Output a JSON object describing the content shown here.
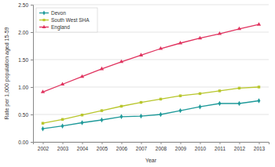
{
  "chart_data": {
    "type": "line",
    "x_label": "Year",
    "y_label": "Rate per 1,000 population aged 15-59",
    "categories": [
      "2002",
      "2003",
      "2004",
      "2005",
      "2006",
      "2007",
      "2008",
      "2009",
      "2010",
      "2011",
      "2012",
      "2013"
    ],
    "series": [
      {
        "name": "Devon",
        "color": "#1f9a9a",
        "marker": "diamond",
        "values": [
          0.24,
          0.29,
          0.35,
          0.4,
          0.46,
          0.47,
          0.5,
          0.57,
          0.64,
          0.7,
          0.7,
          0.75
        ]
      },
      {
        "name": "South West SHA",
        "color": "#b8c62c",
        "marker": "square",
        "values": [
          0.34,
          0.41,
          0.49,
          0.57,
          0.65,
          0.72,
          0.78,
          0.84,
          0.88,
          0.93,
          0.98,
          1.0
        ]
      },
      {
        "name": "England",
        "color": "#e0335f",
        "marker": "triangle",
        "values": [
          0.91,
          1.05,
          1.19,
          1.33,
          1.46,
          1.58,
          1.7,
          1.8,
          1.89,
          1.97,
          2.06,
          2.14
        ]
      }
    ],
    "ylim": [
      0,
      2.5
    ],
    "yticks": [
      {
        "value": 0,
        "label": "0.00"
      },
      {
        "value": 0.5,
        "label": "0.50"
      },
      {
        "value": 1,
        "label": "1.00"
      },
      {
        "value": 1.5,
        "label": "1.50"
      },
      {
        "value": 2,
        "label": "2.00"
      },
      {
        "value": 2.5,
        "label": "2.50"
      }
    ],
    "grid": true,
    "legend": "top-left"
  }
}
